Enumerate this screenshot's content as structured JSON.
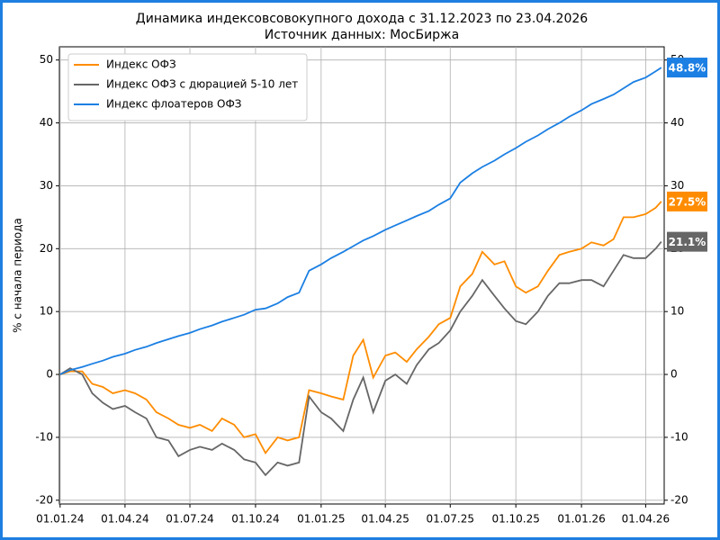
{
  "chart_data": {
    "type": "line",
    "title": "Динамика индексовсовокупного дохода с 31.12.2023 по 23.04.2026",
    "subtitle": "Источник данных: МосБиржа",
    "y_label": "% с начала периода",
    "x": [
      "01.01.24",
      "15.01.24",
      "01.02.24",
      "15.02.24",
      "01.03.24",
      "15.03.24",
      "01.04.24",
      "15.04.24",
      "01.05.24",
      "15.05.24",
      "01.06.24",
      "15.06.24",
      "01.07.24",
      "15.07.24",
      "01.08.24",
      "15.08.24",
      "01.09.24",
      "15.09.24",
      "01.10.24",
      "15.10.24",
      "01.11.24",
      "15.11.24",
      "01.12.24",
      "15.12.24",
      "01.01.25",
      "15.01.25",
      "01.02.25",
      "15.02.25",
      "01.03.25",
      "15.03.25",
      "01.04.25",
      "15.04.25",
      "01.05.25",
      "15.05.25",
      "01.06.25",
      "15.06.25",
      "01.07.25",
      "15.07.25",
      "01.08.25",
      "15.08.25",
      "01.09.25",
      "15.09.25",
      "01.10.25",
      "15.10.25",
      "01.11.25",
      "15.11.25",
      "01.12.25",
      "15.12.25",
      "01.01.26",
      "15.01.26",
      "01.02.26",
      "15.02.26",
      "01.03.26",
      "15.03.26",
      "01.04.26",
      "15.04.26",
      "23.04.26"
    ],
    "series": [
      {
        "name": "Индекс ОФЗ",
        "color": "#ff8c00",
        "last_label": "27.5%",
        "values": [
          0,
          0.5,
          0.5,
          -1.5,
          -2,
          -3,
          -2.5,
          -3,
          -4,
          -6,
          -7,
          -8,
          -8.5,
          -8,
          -9,
          -7,
          -8,
          -10,
          -9.5,
          -12.5,
          -10,
          -10.5,
          -10,
          -2.5,
          -3,
          -3.5,
          -4,
          3,
          5.5,
          -0.5,
          3,
          3.5,
          2,
          4,
          6,
          8,
          9,
          14,
          16,
          19.5,
          17.5,
          18,
          14,
          13,
          14,
          16.5,
          19,
          19.5,
          20,
          21,
          20.5,
          21.5,
          25,
          25,
          25.5,
          26.5,
          27.5
        ]
      },
      {
        "name": "Индекс ОФЗ с дюрацией 5-10 лет",
        "color": "#666666",
        "last_label": "21.1%",
        "values": [
          0,
          1,
          0,
          -3,
          -4.5,
          -5.5,
          -5,
          -6,
          -7,
          -10,
          -10.5,
          -13,
          -12,
          -11.5,
          -12,
          -11,
          -12,
          -13.5,
          -14,
          -16,
          -14,
          -14.5,
          -14,
          -3.5,
          -6,
          -7,
          -9,
          -4,
          -0.5,
          -6,
          -1,
          0,
          -1.5,
          1.5,
          4,
          5,
          7,
          10,
          12.5,
          15,
          12.5,
          10.5,
          8.5,
          8,
          10,
          12.5,
          14.5,
          14.5,
          15,
          15,
          14,
          16.5,
          19,
          18.5,
          18.5,
          20,
          21.1
        ]
      },
      {
        "name": "Индекс флоатеров ОФЗ",
        "color": "#1b7fe3",
        "last_label": "48.8%",
        "values": [
          0,
          0.7,
          1.2,
          1.7,
          2.2,
          2.8,
          3.3,
          3.9,
          4.4,
          5.0,
          5.6,
          6.1,
          6.6,
          7.2,
          7.8,
          8.4,
          9.0,
          9.5,
          10.3,
          10.5,
          11.3,
          12.3,
          13,
          16.5,
          17.5,
          18.5,
          19.5,
          20.4,
          21.3,
          22.0,
          23.0,
          23.7,
          24.5,
          25.2,
          26.0,
          27.0,
          28.0,
          30.5,
          32.0,
          33.0,
          34.0,
          35.0,
          36.0,
          37.0,
          38.0,
          39.0,
          40.0,
          41.0,
          42.0,
          43.0,
          43.8,
          44.5,
          45.5,
          46.5,
          47.2,
          48.2,
          48.8
        ]
      }
    ],
    "xlim": [
      "31.12.23",
      "27.04.26"
    ],
    "xticks": [
      "01.01.24",
      "01.04.24",
      "01.07.24",
      "01.10.24",
      "01.01.25",
      "01.04.25",
      "01.07.25",
      "01.10.25",
      "01.01.26",
      "01.04.26"
    ],
    "ylim": [
      -20.6,
      52.1
    ],
    "yticks": [
      -20,
      -10,
      0,
      10,
      20,
      30,
      40,
      50
    ],
    "grid": true,
    "legend": "upper left"
  }
}
